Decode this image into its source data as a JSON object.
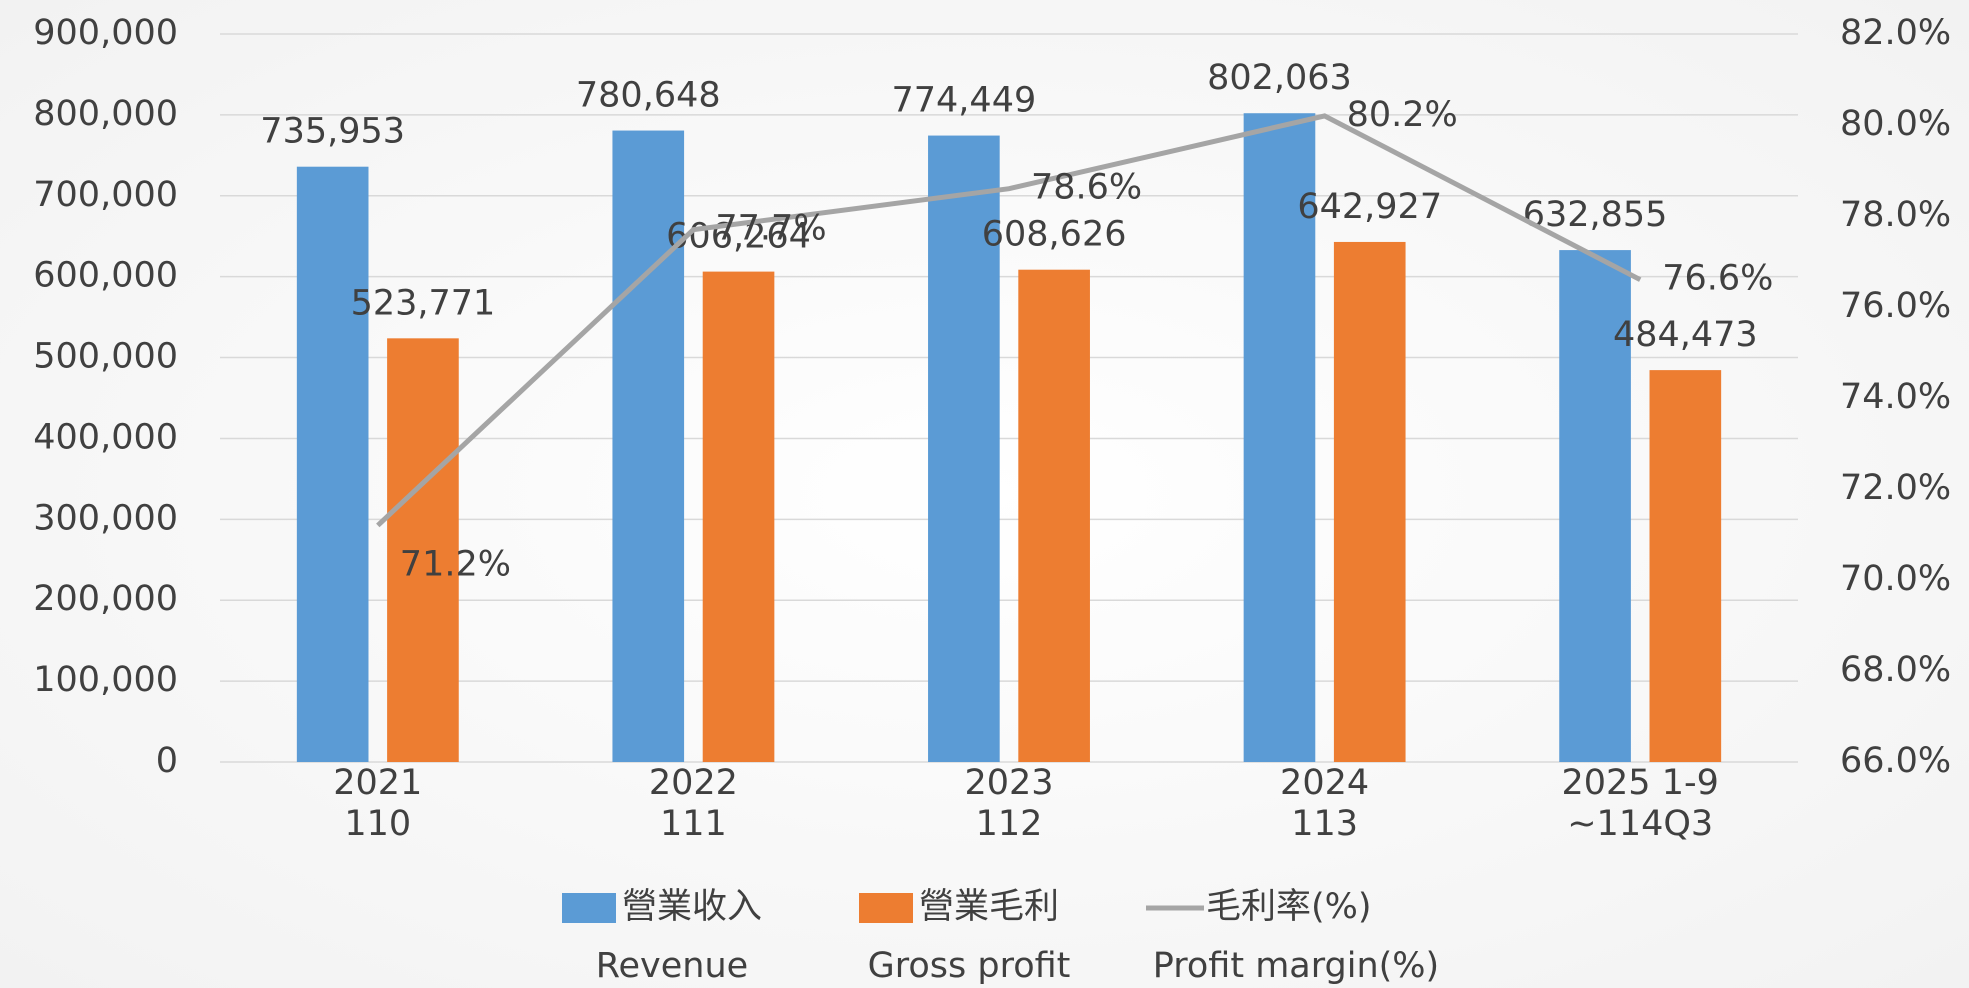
{
  "chart_data": {
    "type": "bar_line",
    "categories": [
      "2021",
      "2022",
      "2023",
      "2024",
      "2025 1-9"
    ],
    "subcategories": [
      "110",
      "111",
      "112",
      "113",
      "~114Q3"
    ],
    "series": [
      {
        "name": "營業收入",
        "name_en": "Revenue",
        "type": "bar",
        "color": "#5b9bd5",
        "values": [
          735953,
          780648,
          774449,
          802063,
          632855
        ],
        "value_labels": [
          "735,953",
          "780,648",
          "774,449",
          "802,063",
          "632,855"
        ]
      },
      {
        "name": "營業毛利",
        "name_en": "Gross profit",
        "type": "bar",
        "color": "#ed7d31",
        "values": [
          523771,
          606264,
          608626,
          642927,
          484473
        ],
        "value_labels": [
          "523,771",
          "606,264",
          "608,626",
          "642,927",
          "484,473"
        ]
      },
      {
        "name": "毛利率(%)",
        "name_en": "Profit margin(%)",
        "type": "line",
        "axis": "y2",
        "color": "#a5a5a5",
        "label_color": "#ff0000",
        "values": [
          71.2,
          77.7,
          78.6,
          80.2,
          76.6
        ],
        "value_labels": [
          "71.2%",
          "77.7%",
          "78.6%",
          "80.2%",
          "76.6%"
        ]
      }
    ],
    "ylim": [
      0,
      900000
    ],
    "yticks": [
      0,
      {
        "value": 100000,
        "label": "100,000"
      },
      {
        "value": 200000,
        "label": "200,000"
      },
      {
        "value": 300000,
        "label": "300,000"
      },
      {
        "value": 400000,
        "label": "400,000"
      },
      {
        "value": 500000,
        "label": "500,000"
      },
      {
        "value": 600000,
        "label": "600,000"
      },
      {
        "value": 700000,
        "label": "700,000"
      },
      {
        "value": 800000,
        "label": "800,000"
      },
      {
        "value": 900000,
        "label": "900,000"
      }
    ],
    "y2lim": [
      66,
      82
    ],
    "y2ticks": [
      {
        "value": 66,
        "label": "66.0%"
      },
      {
        "value": 68,
        "label": "68.0%"
      },
      {
        "value": 70,
        "label": "70.0%"
      },
      {
        "value": 72,
        "label": "72.0%"
      },
      {
        "value": 74,
        "label": "74.0%"
      },
      {
        "value": 76,
        "label": "76.0%"
      },
      {
        "value": 78,
        "label": "78.0%"
      },
      {
        "value": 80,
        "label": "80.0%"
      },
      {
        "value": 82,
        "label": "82.0%"
      }
    ],
    "grid": true,
    "legend": "bottom"
  }
}
